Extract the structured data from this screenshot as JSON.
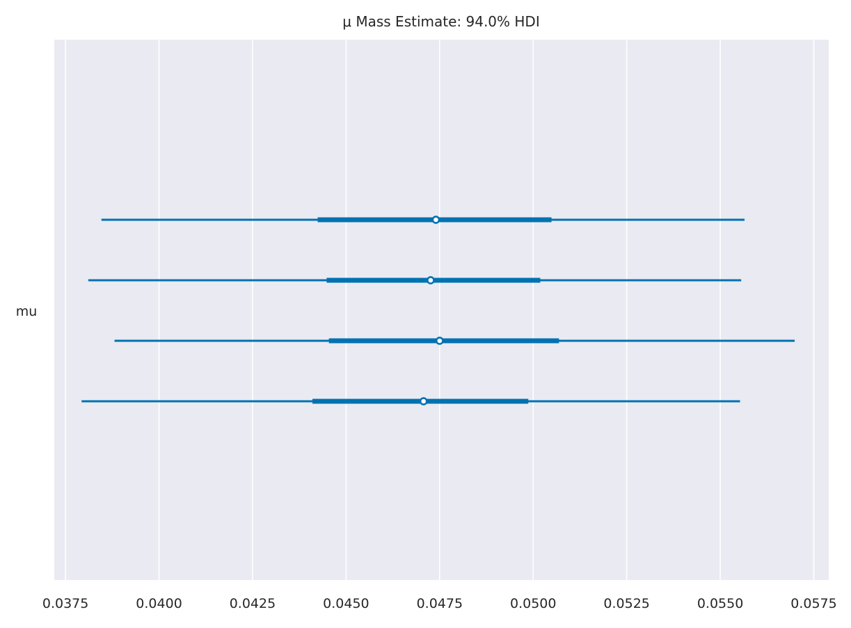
{
  "chart_data": {
    "type": "forest",
    "title": "μ Mass Estimate: 94.0% HDI",
    "ylabel": "mu",
    "xlim": [
      0.0372,
      0.0579
    ],
    "xticks": [
      "0.0375",
      "0.0400",
      "0.0425",
      "0.0450",
      "0.0475",
      "0.0500",
      "0.0525",
      "0.0550",
      "0.0575"
    ],
    "grid": true,
    "colors": {
      "series": "#0072b2",
      "background": "#eaeaf2",
      "grid": "#ffffff"
    },
    "chains": [
      {
        "hdi94": [
          0.03846,
          0.05565
        ],
        "iqr": [
          0.04424,
          0.05049
        ],
        "median": 0.0474
      },
      {
        "hdi94": [
          0.03811,
          0.05556
        ],
        "iqr": [
          0.04448,
          0.05019
        ],
        "median": 0.04726
      },
      {
        "hdi94": [
          0.03881,
          0.05699
        ],
        "iqr": [
          0.04454,
          0.05069
        ],
        "median": 0.0475
      },
      {
        "hdi94": [
          0.03793,
          0.05553
        ],
        "iqr": [
          0.0441,
          0.04987
        ],
        "median": 0.04707
      }
    ]
  }
}
